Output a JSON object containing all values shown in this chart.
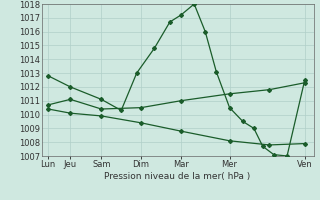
{
  "background_color": "#cfe8e0",
  "grid_color": "#b0cfc8",
  "line_color": "#1a5c2a",
  "xtick_labels": [
    "Lun",
    "Jeu",
    "Sam",
    "Dim",
    "Mar",
    "Mer",
    "Ven"
  ],
  "xlabel": "Pression niveau de la mer( hPa )",
  "ylim": [
    1007,
    1018
  ],
  "yticks": [
    1007,
    1008,
    1009,
    1010,
    1011,
    1012,
    1013,
    1014,
    1015,
    1016,
    1017,
    1018
  ],
  "xtick_positions": [
    0,
    0.5,
    1.2,
    2.1,
    3.0,
    4.1,
    5.8
  ],
  "series1_x": [
    0,
    0.5,
    1.2,
    1.65,
    2.0,
    2.4,
    2.75,
    3.0,
    3.3,
    3.55,
    3.8,
    4.1,
    4.4,
    4.65,
    4.85,
    5.1,
    5.4,
    5.8
  ],
  "series1_y": [
    1012.8,
    1012.0,
    1011.1,
    1010.3,
    1013.0,
    1014.8,
    1016.7,
    1017.2,
    1018.0,
    1016.0,
    1013.1,
    1010.5,
    1009.5,
    1009.0,
    1007.7,
    1007.1,
    1007.0,
    1012.5
  ],
  "series2_x": [
    0,
    0.5,
    1.2,
    2.1,
    3.0,
    4.1,
    5.0,
    5.8
  ],
  "series2_y": [
    1010.7,
    1011.1,
    1010.4,
    1010.5,
    1011.0,
    1011.5,
    1011.8,
    1012.3
  ],
  "series3_x": [
    0,
    0.5,
    1.2,
    2.1,
    3.0,
    4.1,
    5.0,
    5.8
  ],
  "series3_y": [
    1010.4,
    1010.1,
    1009.9,
    1009.4,
    1008.8,
    1008.1,
    1007.8,
    1007.9
  ]
}
